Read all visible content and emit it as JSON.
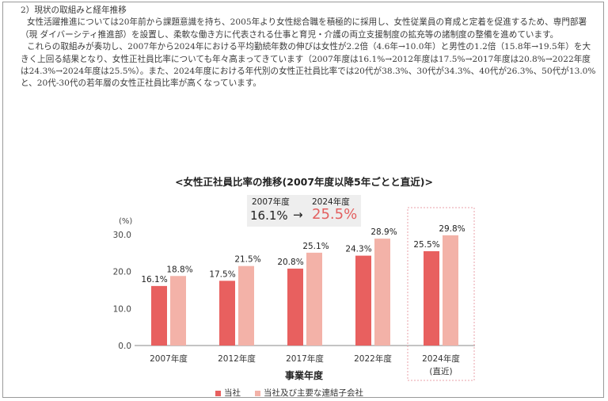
{
  "document": {
    "heading": "2）現状の取組みと経年推移",
    "paragraphs": [
      "女性活躍推進については20年前から課題意識を持ち、2005年より女性総合職を積極的に採用し、女性従業員の育成と定着を促進するため、専門部署（現 ダイバーシティ推進部）を設置し、柔軟な働き方に代表される仕事と育児・介護の両立支援制度の拡充等の諸制度の整備を進めています。",
      "これらの取組みが奏功し、2007年から2024年における平均勤続年数の伸びは女性が2.2倍（4.6年→10.0年）と男性の1.2倍（15.8年→19.5年）を大きく上回る結果となり、女性正社員比率についても年々高まってきています（2007年度は16.1%→2012年度は17.5%→2017年度は20.8%→2022年度は24.3%→2024年度は25.5%）。また、2024年度における年代別の女性正社員比率では20代が38.3%、30代が34.3%、40代が26.3%、50代が13.0%と、20代-30代の若年層の女性正社員比率が高くなっています。"
    ]
  },
  "comparison": {
    "year_from": "2007年度",
    "year_to": "2024年度",
    "value_from": "16.1%",
    "arrow": "→",
    "value_to": "25.5%"
  },
  "colors": {
    "company": "#e8605f",
    "group": "#f3b2a8",
    "highlight_value": "#e36060",
    "highlight_box": "#e8a0a8"
  },
  "chart_data": {
    "type": "bar",
    "title": "<女性正社員比率の推移(2007年度以降5年ごとと直近)>",
    "xlabel": "事業年度",
    "y_unit_label": "(%)",
    "ylim": [
      0,
      30
    ],
    "yticks": [
      "0.0",
      "10.0",
      "20.0",
      "30.0"
    ],
    "categories": [
      "2007年度",
      "2012年度",
      "2017年度",
      "2022年度",
      "2024年度"
    ],
    "category_sublabels": [
      "",
      "",
      "",
      "",
      "(直近)"
    ],
    "highlighted_category": "2024年度",
    "series": [
      {
        "name": "当社",
        "values": [
          16.1,
          17.5,
          20.8,
          24.3,
          25.5
        ],
        "labels": [
          "16.1%",
          "17.5%",
          "20.8%",
          "24.3%",
          "25.5%"
        ]
      },
      {
        "name": "当社及び主要な連結子会社",
        "values": [
          18.8,
          21.5,
          25.1,
          28.9,
          29.8
        ],
        "labels": [
          "18.8%",
          "21.5%",
          "25.1%",
          "28.9%",
          "29.8%"
        ]
      }
    ],
    "legend_position": "bottom",
    "grid": false
  }
}
